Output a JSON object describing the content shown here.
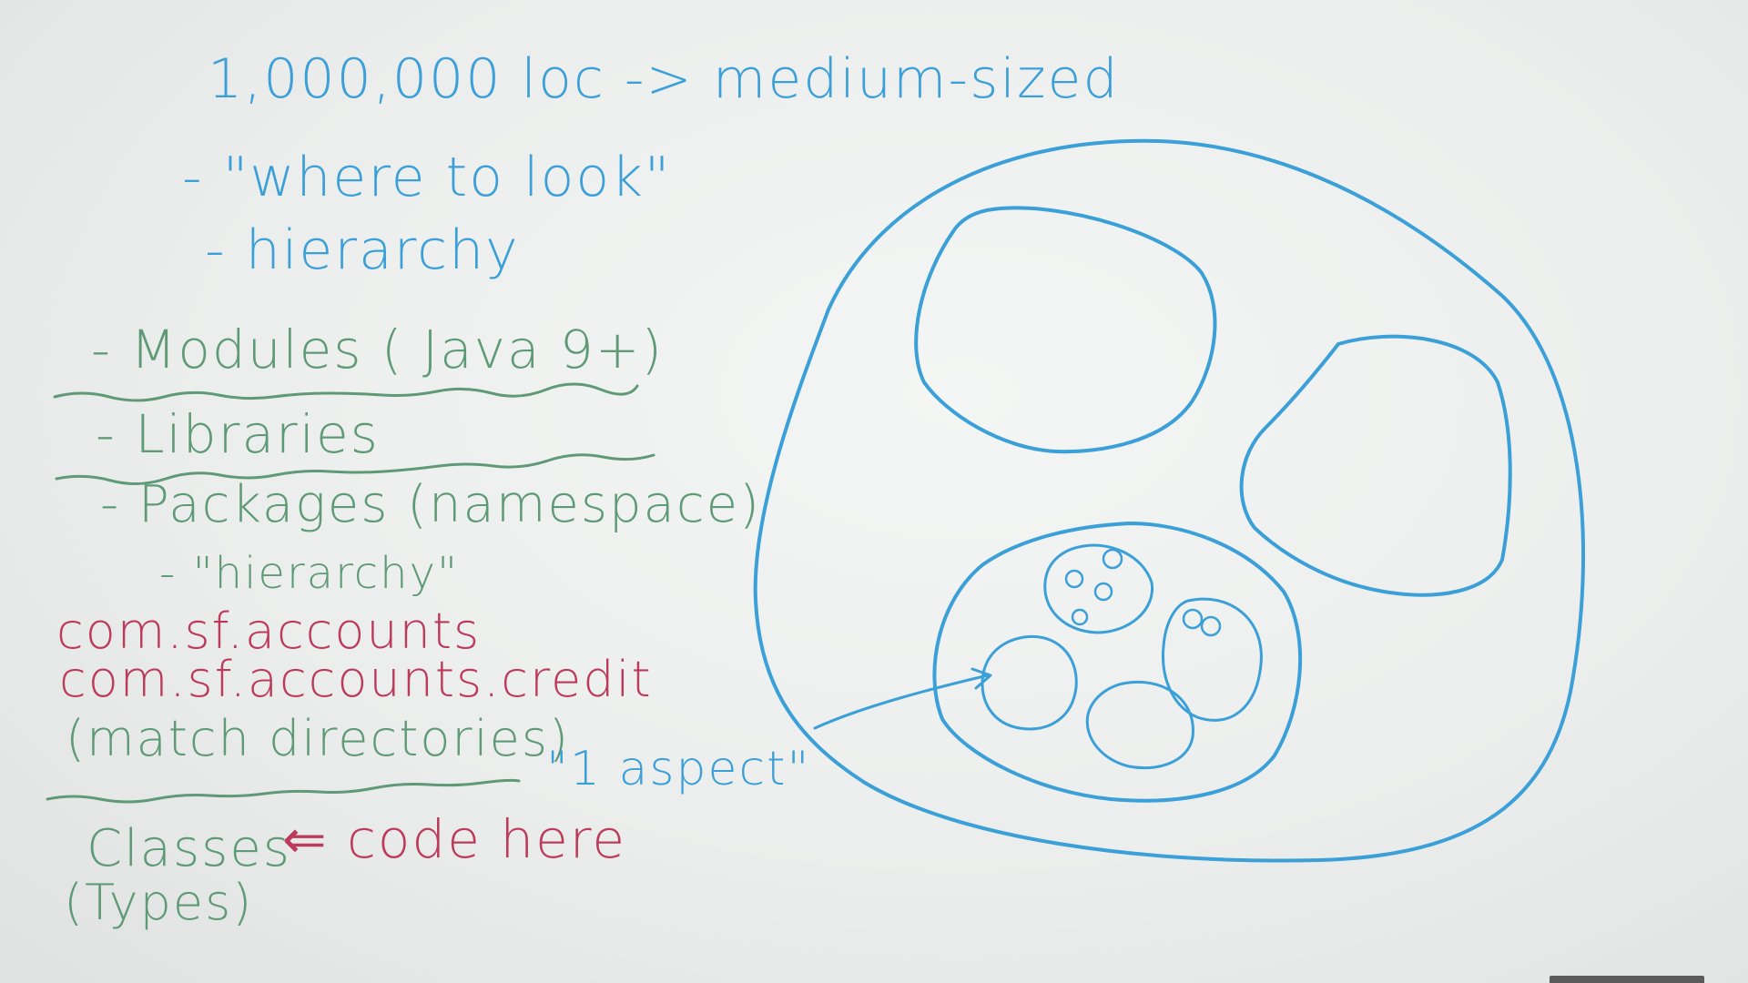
{
  "board": {
    "lines": {
      "title": "1,000,000 loc -> medium-sized",
      "where_to_look": "- \"where to look\"",
      "hierarchy": "- hierarchy",
      "modules": "- Modules ( Java 9+)",
      "libraries": "- Libraries",
      "packages": "- Packages (namespace)",
      "hierarchy_quoted": "- \"hierarchy\"",
      "pkg_1": "com.sf.accounts",
      "pkg_2": "com.sf.accounts.credit",
      "match_directories": "(match directories)",
      "aspect": "\"1 aspect\"",
      "classes": "Classes",
      "code_here": "⇐ code here",
      "types": "(Types)"
    },
    "colors": {
      "blue_marker": "#3b9fd8",
      "green_marker": "#5f9a76",
      "red_marker": "#bc3b5d",
      "board": "#eceeed"
    }
  }
}
